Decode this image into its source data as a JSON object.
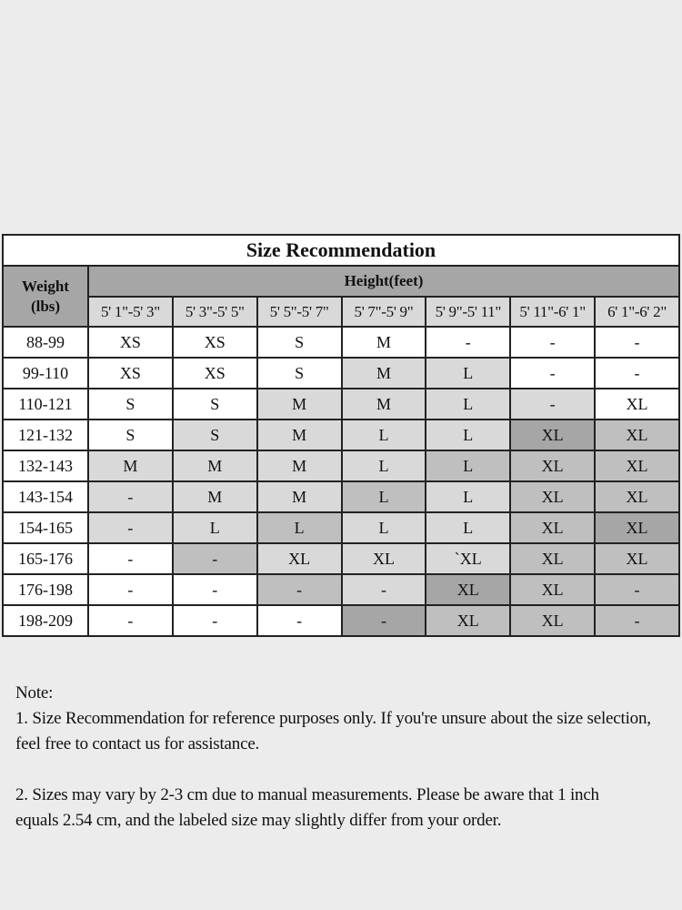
{
  "table": {
    "title": "Size Recommendation",
    "weight_header": "Weight\n(lbs)",
    "weight_header_lines": [
      "Weight",
      "(lbs)"
    ],
    "height_header": "Height(feet)",
    "height_ranges": [
      "5' 1\"-5' 3\"",
      "5' 3\"-5' 5\"",
      "5' 5\"-5' 7\"",
      "5' 7\"-5' 9\"",
      "5' 9\"-5' 11\"",
      "5' 11\"-6' 1\"",
      "6' 1\"-6' 2\""
    ],
    "shade_colors": {
      "W": "#ffffff",
      "A": "#d9d9d9",
      "B": "#bfbfbf",
      "C": "#a6a6a6"
    },
    "rows": [
      {
        "weight": "88-99",
        "sizes": [
          "XS",
          "XS",
          "S",
          "M",
          "-",
          "-",
          "-"
        ],
        "shades": [
          "W",
          "W",
          "W",
          "W",
          "W",
          "W",
          "W"
        ]
      },
      {
        "weight": "99-110",
        "sizes": [
          "XS",
          "XS",
          "S",
          "M",
          "L",
          "-",
          "-"
        ],
        "shades": [
          "W",
          "W",
          "W",
          "A",
          "A",
          "W",
          "W"
        ]
      },
      {
        "weight": "110-121",
        "sizes": [
          "S",
          "S",
          "M",
          "M",
          "L",
          "-",
          "XL"
        ],
        "shades": [
          "W",
          "W",
          "A",
          "A",
          "A",
          "A",
          "W"
        ]
      },
      {
        "weight": "121-132",
        "sizes": [
          "S",
          "S",
          "M",
          "L",
          "L",
          "XL",
          "XL"
        ],
        "shades": [
          "W",
          "A",
          "A",
          "A",
          "A",
          "C",
          "B"
        ]
      },
      {
        "weight": "132-143",
        "sizes": [
          "M",
          "M",
          "M",
          "L",
          "L",
          "XL",
          "XL"
        ],
        "shades": [
          "A",
          "A",
          "A",
          "A",
          "B",
          "B",
          "B"
        ]
      },
      {
        "weight": "143-154",
        "sizes": [
          "-",
          "M",
          "M",
          "L",
          "L",
          "XL",
          "XL"
        ],
        "shades": [
          "A",
          "A",
          "A",
          "B",
          "A",
          "B",
          "B"
        ]
      },
      {
        "weight": "154-165",
        "sizes": [
          "-",
          "L",
          "L",
          "L",
          "L",
          "XL",
          "XL"
        ],
        "shades": [
          "A",
          "A",
          "B",
          "A",
          "A",
          "B",
          "C"
        ]
      },
      {
        "weight": "165-176",
        "sizes": [
          "-",
          "-",
          "XL",
          "XL",
          "`XL",
          "XL",
          "XL"
        ],
        "shades": [
          "W",
          "B",
          "A",
          "A",
          "A",
          "B",
          "B"
        ]
      },
      {
        "weight": "176-198",
        "sizes": [
          "-",
          "-",
          "-",
          "-",
          "XL",
          "XL",
          "-"
        ],
        "shades": [
          "W",
          "W",
          "B",
          "A",
          "C",
          "B",
          "B"
        ]
      },
      {
        "weight": "198-209",
        "sizes": [
          "-",
          "-",
          "-",
          "-",
          "XL",
          "XL",
          "-"
        ],
        "shades": [
          "W",
          "W",
          "W",
          "C",
          "B",
          "B",
          "B"
        ]
      }
    ]
  },
  "notes": {
    "heading": "Note:",
    "note1": "1. Size Recommendation for reference purposes only. If you're unsure about the size selection, feel free to contact us for assistance.",
    "note2": "2. Sizes may vary by 2-3 cm due to manual measurements. Please be aware that 1 inch equals 2.54 cm, and the labeled size may slightly differ from your order."
  }
}
